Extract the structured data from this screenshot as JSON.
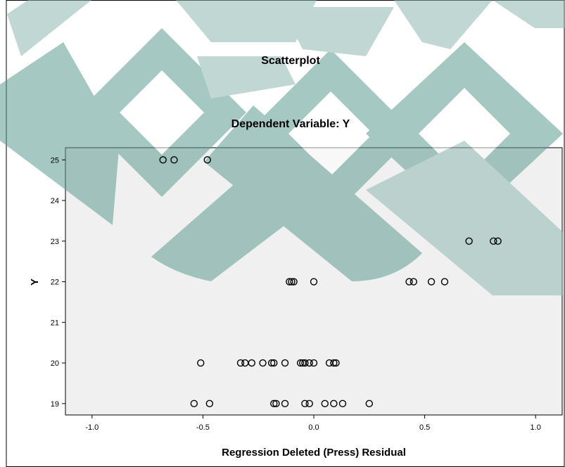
{
  "chart_data": {
    "type": "scatter",
    "title": "Scatterplot",
    "subtitle": "Dependent Variable: Y",
    "xlabel": "Regression Deleted (Press) Residual",
    "ylabel": "Y",
    "xlim": [
      -1.12,
      1.12
    ],
    "ylim": [
      18.72,
      25.3
    ],
    "xticks": [
      -1.0,
      -0.5,
      0.0,
      0.5,
      1.0
    ],
    "xtick_labels": [
      "-1.0",
      "-0.5",
      "0.0",
      "0.5",
      "1.0"
    ],
    "yticks": [
      19,
      20,
      21,
      22,
      23,
      24,
      25
    ],
    "ytick_labels": [
      "19",
      "20",
      "21",
      "22",
      "23",
      "24",
      "25"
    ],
    "grid": false,
    "legend": "none",
    "colors": {
      "plot_background": "#f0f0f0",
      "point_stroke": "#000000",
      "frame": "#000000",
      "watermark": "#8fb8b1"
    },
    "points": [
      {
        "x": -0.68,
        "y": 25
      },
      {
        "x": -0.63,
        "y": 25
      },
      {
        "x": -0.48,
        "y": 25
      },
      {
        "x": 0.7,
        "y": 23
      },
      {
        "x": 0.81,
        "y": 23
      },
      {
        "x": 0.83,
        "y": 23
      },
      {
        "x": -0.11,
        "y": 22
      },
      {
        "x": -0.1,
        "y": 22
      },
      {
        "x": -0.09,
        "y": 22
      },
      {
        "x": 0.0,
        "y": 22
      },
      {
        "x": 0.43,
        "y": 22
      },
      {
        "x": 0.45,
        "y": 22
      },
      {
        "x": 0.53,
        "y": 22
      },
      {
        "x": 0.59,
        "y": 22
      },
      {
        "x": -0.51,
        "y": 20
      },
      {
        "x": -0.33,
        "y": 20
      },
      {
        "x": -0.31,
        "y": 20
      },
      {
        "x": -0.28,
        "y": 20
      },
      {
        "x": -0.23,
        "y": 20
      },
      {
        "x": -0.19,
        "y": 20
      },
      {
        "x": -0.18,
        "y": 20
      },
      {
        "x": -0.13,
        "y": 20
      },
      {
        "x": -0.06,
        "y": 20
      },
      {
        "x": -0.05,
        "y": 20
      },
      {
        "x": -0.04,
        "y": 20
      },
      {
        "x": -0.02,
        "y": 20
      },
      {
        "x": 0.0,
        "y": 20
      },
      {
        "x": 0.07,
        "y": 20
      },
      {
        "x": 0.09,
        "y": 20
      },
      {
        "x": 0.1,
        "y": 20
      },
      {
        "x": -0.54,
        "y": 19
      },
      {
        "x": -0.47,
        "y": 19
      },
      {
        "x": -0.18,
        "y": 19
      },
      {
        "x": -0.17,
        "y": 19
      },
      {
        "x": -0.13,
        "y": 19
      },
      {
        "x": -0.04,
        "y": 19
      },
      {
        "x": -0.02,
        "y": 19
      },
      {
        "x": 0.05,
        "y": 19
      },
      {
        "x": 0.09,
        "y": 19
      },
      {
        "x": 0.13,
        "y": 19
      },
      {
        "x": 0.25,
        "y": 19
      }
    ]
  }
}
